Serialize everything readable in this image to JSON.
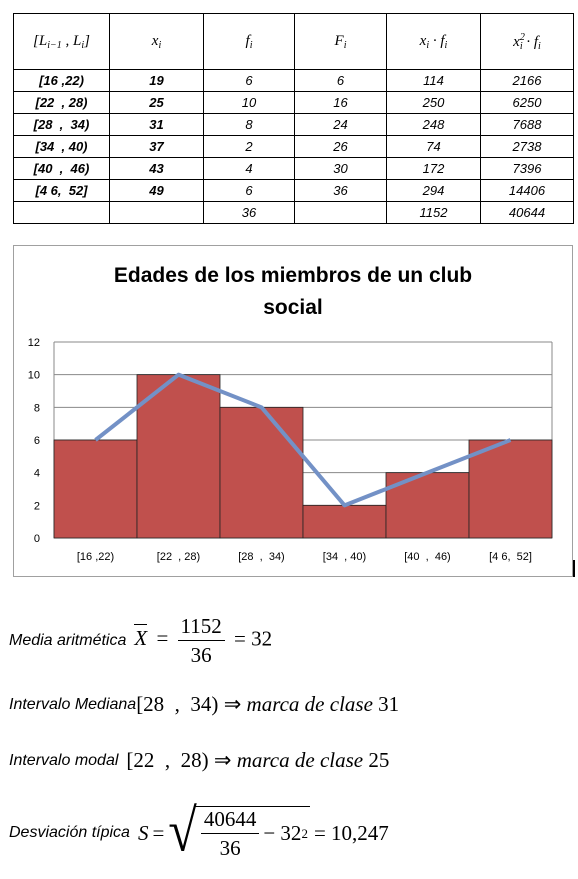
{
  "table": {
    "headers": {
      "interval": "[L",
      "interval_sub1": "i−1",
      "interval_mid": " , L",
      "interval_sub2": "i",
      "interval_end": "]",
      "x": "x",
      "x_sub": "i",
      "f": "f",
      "f_sub": "i",
      "F": "F",
      "F_sub": "i",
      "xf": "x",
      "xf_sub": "i",
      "xf_dot": " · f",
      "xf_sub2": "i",
      "x2f": "x",
      "x2f_sup": "2",
      "x2f_sub": "i",
      "x2f_dot": " · f",
      "x2f_sub2": "i"
    },
    "rows": [
      [
        "[16 ,22)",
        "19",
        "6",
        "6",
        "114",
        "2166"
      ],
      [
        "[22  , 28)",
        "25",
        "10",
        "16",
        "250",
        "6250"
      ],
      [
        "[28  ,  34)",
        "31",
        "8",
        "24",
        "248",
        "7688"
      ],
      [
        "[34  , 40)",
        "37",
        "2",
        "26",
        "74",
        "2738"
      ],
      [
        "[40  ,  46)",
        "43",
        "4",
        "30",
        "172",
        "7396"
      ],
      [
        "[4 6,  52]",
        "49",
        "6",
        "36",
        "294",
        "14406"
      ]
    ],
    "totals": [
      "",
      "",
      "36",
      "",
      "1152",
      "40644"
    ]
  },
  "chart_data": {
    "type": "bar",
    "title_line1": "Edades de los miembros de un club",
    "title_line2": "social",
    "categories": [
      "[16 ,22)",
      "[22  , 28)",
      "[28  ,  34)",
      "[34  , 40)",
      "[40  ,  46)",
      "[4 6,  52]"
    ],
    "values": [
      6,
      10,
      8,
      2,
      4,
      6
    ],
    "line_values": [
      6,
      10,
      8,
      2,
      4,
      6
    ],
    "ylim": [
      0,
      12
    ],
    "yticks": [
      0,
      2,
      4,
      6,
      8,
      10,
      12
    ],
    "grid": true,
    "bar_color": "#c0504d",
    "line_color": "#7391c6"
  },
  "formulas": {
    "media_label": "Media aritmética",
    "media_var": "X",
    "media_eq": "=",
    "media_num": "1152",
    "media_den": "36",
    "media_result": "= 32",
    "mediana_label": "Intervalo Mediana",
    "mediana_interval": "[28  ,  34)",
    "mediana_arrow": "⇒",
    "mediana_text": "marca de clase",
    "mediana_value": "31",
    "modal_label": "Intervalo modal",
    "modal_interval": "[22  ,  28)",
    "modal_arrow": "⇒",
    "modal_text": "marca de clase",
    "modal_value": "25",
    "desv_label": "Desviación típica",
    "desv_var": "S",
    "desv_eq": "=",
    "desv_num": "40644",
    "desv_den": "36",
    "desv_minus": "− 32",
    "desv_sup": "2",
    "desv_result": "= 10,247"
  }
}
